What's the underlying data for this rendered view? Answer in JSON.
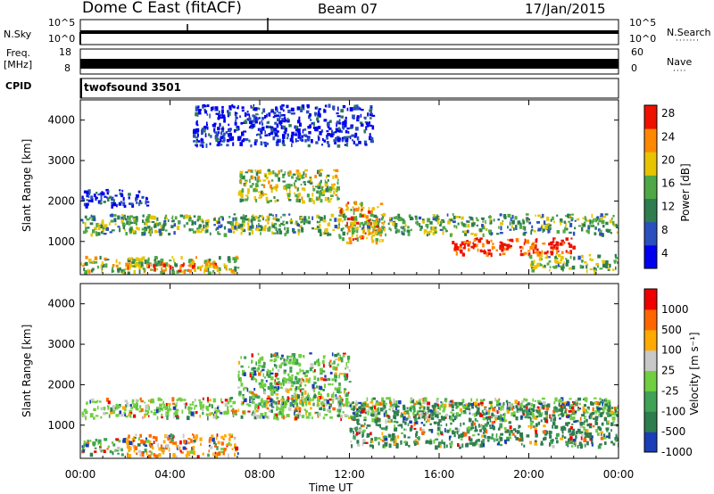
{
  "header": {
    "radar": "Dome C East (fitACF)",
    "beam": "Beam 07",
    "date": "17/Jan/2015"
  },
  "mini_panels": {
    "nsky_label": "N.Sky",
    "nsearch_label": "N.Search",
    "nsky_ticks": [
      "10^5",
      "10^0"
    ],
    "nsky_right_ticks": [
      "10^5",
      "10^0"
    ],
    "freq_label_line1": "Freq.",
    "freq_label_line2": "[MHz]",
    "freq_ticks": [
      "18",
      "8"
    ],
    "nave_label": "Nave",
    "nave_ticks": [
      "60",
      "0"
    ],
    "cpid_label": "CPID",
    "cpid_value": "twofsound 3501"
  },
  "chart_data": [
    {
      "type": "heatmap",
      "panel": "power",
      "ylabel": "Slant Range [km]",
      "ylim": [
        180,
        4500
      ],
      "yticks": [
        "4000",
        "3000",
        "2000",
        "1000"
      ],
      "xlim": [
        "00:00",
        "24:00"
      ],
      "colorbar": {
        "label": "Power [dB]",
        "ticks": [
          "28",
          "24",
          "20",
          "16",
          "12",
          "8",
          "4"
        ],
        "colors": [
          "#0000ee",
          "#2a4fbf",
          "#2e7d4f",
          "#4fa845",
          "#e8c400",
          "#ff8800",
          "#ee1100"
        ]
      },
      "features": [
        {
          "start_h": 0.0,
          "end_h": 24.0,
          "range_lo": 1200,
          "range_hi": 1700,
          "level": 0.45
        },
        {
          "start_h": 0.0,
          "end_h": 7.0,
          "range_lo": 250,
          "range_hi": 650,
          "level": 0.55
        },
        {
          "start_h": 2.0,
          "end_h": 6.0,
          "range_lo": 300,
          "range_hi": 500,
          "level": 0.8
        },
        {
          "start_h": 7.0,
          "end_h": 11.5,
          "range_lo": 2000,
          "range_hi": 2800,
          "level": 0.55
        },
        {
          "start_h": 11.5,
          "end_h": 13.5,
          "range_lo": 1000,
          "range_hi": 2000,
          "level": 0.7
        },
        {
          "start_h": 16.5,
          "end_h": 22.0,
          "range_lo": 700,
          "range_hi": 1100,
          "level": 0.95
        },
        {
          "start_h": 20.0,
          "end_h": 24.0,
          "range_lo": 300,
          "range_hi": 700,
          "level": 0.5
        },
        {
          "start_h": 5.0,
          "end_h": 13.0,
          "range_lo": 3400,
          "range_hi": 4400,
          "level": 0.1
        },
        {
          "start_h": 0.0,
          "end_h": 3.0,
          "range_lo": 1900,
          "range_hi": 2300,
          "level": 0.15
        }
      ]
    },
    {
      "type": "heatmap",
      "panel": "velocity",
      "ylabel": "Slant Range [km]",
      "ylim": [
        180,
        4500
      ],
      "yticks": [
        "4000",
        "3000",
        "2000",
        "1000"
      ],
      "xlim": [
        "00:00",
        "24:00"
      ],
      "xticks": [
        "00:00",
        "04:00",
        "08:00",
        "12:00",
        "16:00",
        "20:00",
        "00:00"
      ],
      "xlabel": "Time UT",
      "colorbar": {
        "label": "Velocity [m s⁻¹]",
        "ticks": [
          "1000",
          "500",
          "100",
          "25",
          "-25",
          "-100",
          "-500",
          "-1000"
        ],
        "colors": [
          "#1a3db8",
          "#2e7d4f",
          "#3fa255",
          "#6fcf3f",
          "#c8c8c8",
          "#ffaa00",
          "#ff6600",
          "#ee0000"
        ]
      },
      "features": [
        {
          "start_h": 0.0,
          "end_h": 24.0,
          "range_lo": 1200,
          "range_hi": 1700,
          "level": 0.45
        },
        {
          "start_h": 2.0,
          "end_h": 7.0,
          "range_lo": 250,
          "range_hi": 800,
          "level": 0.75
        },
        {
          "start_h": 7.0,
          "end_h": 12.0,
          "range_lo": 1500,
          "range_hi": 2800,
          "level": 0.4
        },
        {
          "start_h": 12.0,
          "end_h": 24.0,
          "range_lo": 500,
          "range_hi": 1600,
          "level": 0.2
        },
        {
          "start_h": 0.0,
          "end_h": 2.0,
          "range_lo": 300,
          "range_hi": 700,
          "level": 0.35
        }
      ]
    }
  ]
}
